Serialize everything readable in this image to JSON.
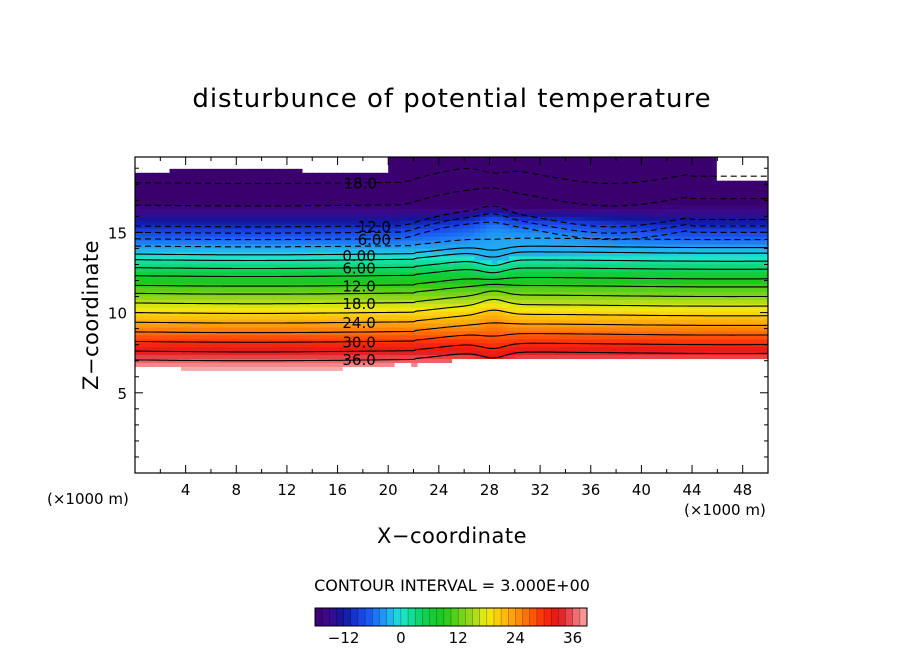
{
  "chart_data": {
    "type": "heatmap",
    "title": "disturbunce of potential temperature",
    "xlabel": "X−coordinate",
    "ylabel": "Z−coordinate",
    "x_unit_label": "(×1000 m)",
    "z_unit_label": "(×1000 m)",
    "xlim": [
      0,
      50
    ],
    "ylim": [
      0,
      19.7
    ],
    "x_ticks": [
      4,
      8,
      12,
      16,
      20,
      24,
      28,
      32,
      36,
      40,
      44,
      48
    ],
    "y_ticks": [
      5,
      10,
      15
    ],
    "contour_interval_text": "CONTOUR INTERVAL = 3.000E+00",
    "contour_interval": 3.0,
    "colorbar": {
      "range": [
        -18,
        39
      ],
      "ticks": [
        -12,
        0,
        12,
        24,
        36
      ]
    },
    "contour_labels": [
      {
        "text": "18.0",
        "x": 17.8,
        "z": 18.1,
        "dashed": true
      },
      {
        "text": "12.0",
        "x": 18.9,
        "z": 15.4,
        "dashed": true
      },
      {
        "text": "6.00",
        "x": 18.9,
        "z": 14.6,
        "dashed": true
      },
      {
        "text": "0.00",
        "x": 17.7,
        "z": 13.6,
        "dashed": false
      },
      {
        "text": "6.00",
        "x": 17.7,
        "z": 12.8,
        "dashed": false
      },
      {
        "text": "12.0",
        "x": 17.7,
        "z": 11.7,
        "dashed": false
      },
      {
        "text": "18.0",
        "x": 17.7,
        "z": 10.6,
        "dashed": false
      },
      {
        "text": "24.0",
        "x": 17.7,
        "z": 9.4,
        "dashed": false
      },
      {
        "text": "30.0",
        "x": 17.7,
        "z": 8.2,
        "dashed": false
      },
      {
        "text": "36.0",
        "x": 17.7,
        "z": 7.1,
        "dashed": false
      }
    ]
  }
}
